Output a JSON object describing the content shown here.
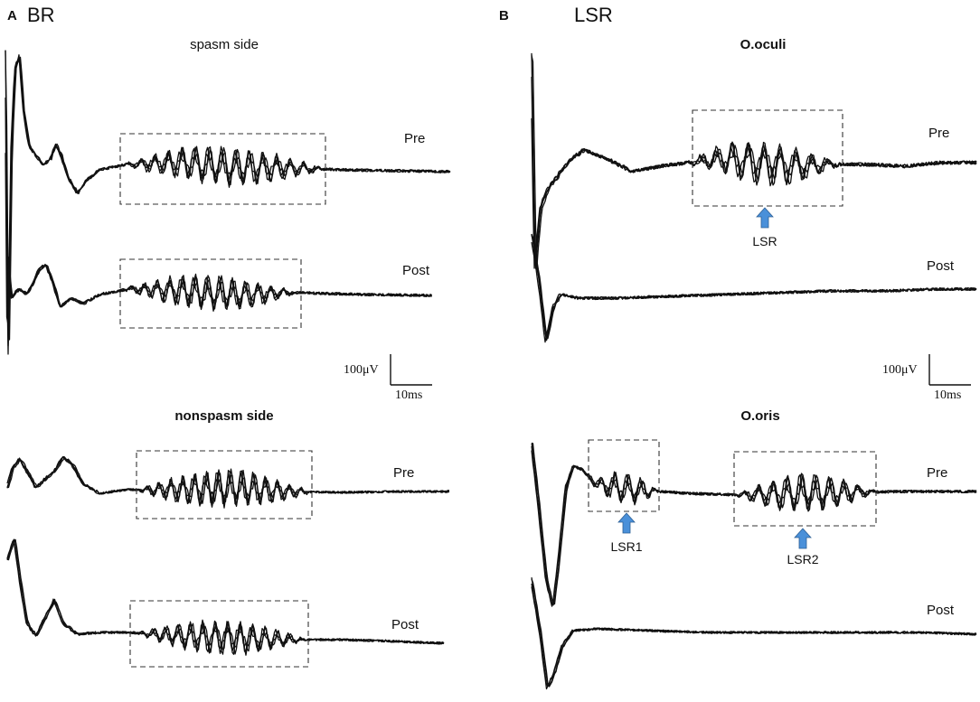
{
  "chart_data": [
    {
      "type": "line",
      "panel_letter": "A",
      "panel_title": "BR",
      "scale_bar": {
        "voltage_label": "100μV",
        "time_label": "10ms"
      },
      "subplots": [
        {
          "title": "spasm side",
          "title_bold": false,
          "traces": [
            {
              "label": "Pre",
              "marked_windows": 1
            },
            {
              "label": "Post",
              "marked_windows": 1
            }
          ]
        },
        {
          "title": "nonspasm side",
          "title_bold": true,
          "traces": [
            {
              "label": "Pre",
              "marked_windows": 1
            },
            {
              "label": "Post",
              "marked_windows": 1
            }
          ]
        }
      ]
    },
    {
      "type": "line",
      "panel_letter": "B",
      "panel_title": "LSR",
      "scale_bar": {
        "voltage_label": "100μV",
        "time_label": "10ms"
      },
      "subplots": [
        {
          "title": "O.oculi",
          "title_bold": true,
          "traces": [
            {
              "label": "Pre",
              "marked_windows": 1
            },
            {
              "label": "Post",
              "marked_windows": 0
            }
          ],
          "arrows": [
            "LSR"
          ]
        },
        {
          "title": "O.oris",
          "title_bold": true,
          "traces": [
            {
              "label": "Pre",
              "marked_windows": 2
            },
            {
              "label": "Post",
              "marked_windows": 0
            }
          ],
          "arrows": [
            "LSR1",
            "LSR2"
          ]
        }
      ]
    }
  ]
}
